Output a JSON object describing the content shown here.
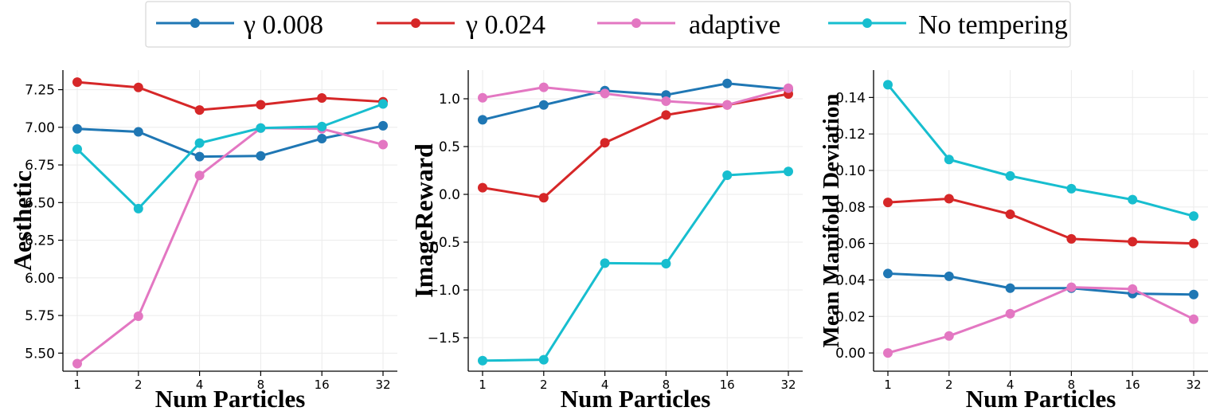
{
  "chart_data": [
    {
      "type": "line",
      "ylabel": "Aesthetic",
      "xlabel": "Num Particles",
      "categories": [
        "1",
        "2",
        "4",
        "8",
        "16",
        "32"
      ],
      "ylim": [
        5.38,
        7.38
      ],
      "yticks": [
        5.5,
        5.75,
        6.0,
        6.25,
        6.5,
        6.75,
        7.0,
        7.25
      ],
      "ytick_labels": [
        "5.50",
        "5.75",
        "6.00",
        "6.25",
        "6.50",
        "6.75",
        "7.00",
        "7.25"
      ],
      "series": [
        {
          "name": "γ 0.008",
          "values": [
            6.99,
            6.97,
            6.805,
            6.81,
            6.925,
            7.01
          ]
        },
        {
          "name": "γ 0.024",
          "values": [
            7.3,
            7.265,
            7.115,
            7.15,
            7.195,
            7.17
          ]
        },
        {
          "name": "adaptive",
          "values": [
            5.43,
            5.745,
            6.68,
            6.995,
            6.99,
            6.885
          ]
        },
        {
          "name": "No tempering",
          "values": [
            6.855,
            6.46,
            6.895,
            6.995,
            7.005,
            7.155
          ]
        }
      ]
    },
    {
      "type": "line",
      "ylabel": "ImageReward",
      "xlabel": "Num Particles",
      "categories": [
        "1",
        "2",
        "4",
        "8",
        "16",
        "32"
      ],
      "ylim": [
        -1.85,
        1.3
      ],
      "yticks": [
        -1.5,
        -1.0,
        -0.5,
        0.0,
        0.5,
        1.0
      ],
      "ytick_labels": [
        "−1.5",
        "−1.0",
        "−0.5",
        "0.0",
        "0.5",
        "1.0"
      ],
      "series": [
        {
          "name": "γ 0.008",
          "values": [
            0.78,
            0.935,
            1.085,
            1.04,
            1.16,
            1.1
          ]
        },
        {
          "name": "γ 0.024",
          "values": [
            0.07,
            -0.035,
            0.54,
            0.83,
            0.935,
            1.05
          ]
        },
        {
          "name": "adaptive",
          "values": [
            1.01,
            1.12,
            1.055,
            0.975,
            0.935,
            1.11
          ]
        },
        {
          "name": "No tempering",
          "values": [
            -1.74,
            -1.73,
            -0.72,
            -0.725,
            0.2,
            0.24
          ]
        }
      ]
    },
    {
      "type": "line",
      "ylabel": "Mean Manifold Deviation",
      "xlabel": "Num Particles",
      "categories": [
        "1",
        "2",
        "4",
        "8",
        "16",
        "32"
      ],
      "ylim": [
        -0.01,
        0.155
      ],
      "yticks": [
        0.0,
        0.02,
        0.04,
        0.06,
        0.08,
        0.1,
        0.12,
        0.14
      ],
      "ytick_labels": [
        "0.00",
        "0.02",
        "0.04",
        "0.06",
        "0.08",
        "0.10",
        "0.12",
        "0.14"
      ],
      "series": [
        {
          "name": "γ 0.008",
          "values": [
            0.0435,
            0.042,
            0.0355,
            0.0355,
            0.0325,
            0.032
          ]
        },
        {
          "name": "γ 0.024",
          "values": [
            0.0825,
            0.0845,
            0.076,
            0.0625,
            0.061,
            0.06
          ]
        },
        {
          "name": "adaptive",
          "values": [
            0.0,
            0.0093,
            0.0215,
            0.036,
            0.035,
            0.0185
          ]
        },
        {
          "name": "No tempering",
          "values": [
            0.147,
            0.106,
            0.097,
            0.09,
            0.084,
            0.075
          ]
        }
      ]
    }
  ],
  "legend": {
    "items": [
      {
        "label": "γ 0.008",
        "color": "#1f77b4"
      },
      {
        "label": "γ 0.024",
        "color": "#d62728"
      },
      {
        "label": "adaptive",
        "color": "#e377c2"
      },
      {
        "label": "No tempering",
        "color": "#17becf"
      }
    ]
  }
}
